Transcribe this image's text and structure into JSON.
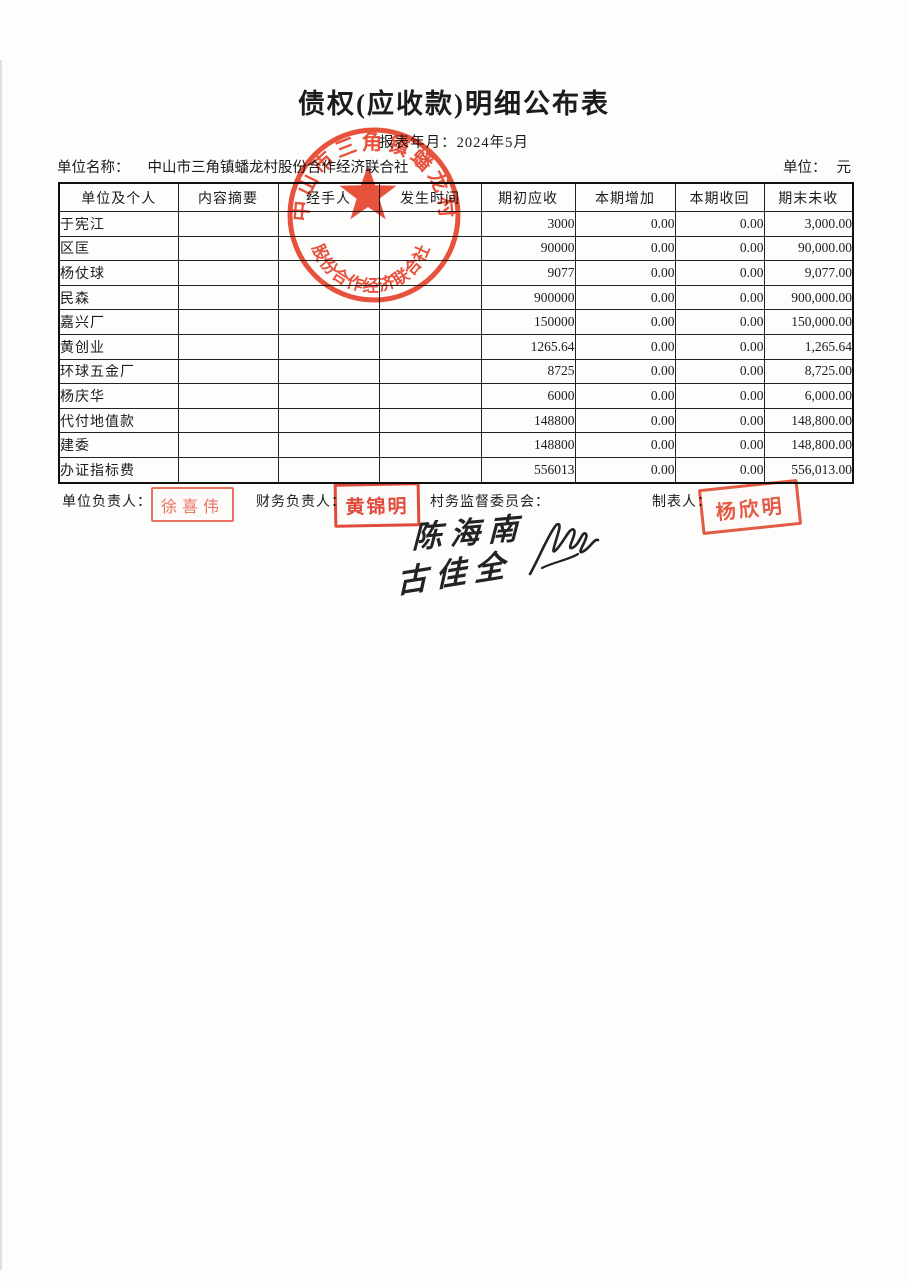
{
  "page": {
    "title": "债权(应收款)明细公布表",
    "report_period_label": "报表年月：",
    "report_period_value": "2024年5月",
    "unit_name_label": "单位名称：",
    "unit_name_value": "中山市三角镇蟠龙村股份合作经济联合社",
    "unit_label": "单位：",
    "unit_value": "元"
  },
  "table": {
    "columns": [
      "单位及个人",
      "内容摘要",
      "经手人",
      "发生时间",
      "期初应收",
      "本期增加",
      "本期收回",
      "期末未收"
    ],
    "rows": [
      [
        "于宪江",
        "",
        "",
        "",
        "3000",
        "0.00",
        "0.00",
        "3,000.00"
      ],
      [
        "区匡",
        "",
        "",
        "",
        "90000",
        "0.00",
        "0.00",
        "90,000.00"
      ],
      [
        "杨仗球",
        "",
        "",
        "",
        "9077",
        "0.00",
        "0.00",
        "9,077.00"
      ],
      [
        "民森",
        "",
        "",
        "",
        "900000",
        "0.00",
        "0.00",
        "900,000.00"
      ],
      [
        "嘉兴厂",
        "",
        "",
        "",
        "150000",
        "0.00",
        "0.00",
        "150,000.00"
      ],
      [
        "黄创业",
        "",
        "",
        "",
        "1265.64",
        "0.00",
        "0.00",
        "1,265.64"
      ],
      [
        "环球五金厂",
        "",
        "",
        "",
        "8725",
        "0.00",
        "0.00",
        "8,725.00"
      ],
      [
        "杨庆华",
        "",
        "",
        "",
        "6000",
        "0.00",
        "0.00",
        "6,000.00"
      ],
      [
        "代付地值款",
        "",
        "",
        "",
        "148800",
        "0.00",
        "0.00",
        "148,800.00"
      ],
      [
        "建委",
        "",
        "",
        "",
        "148800",
        "0.00",
        "0.00",
        "148,800.00"
      ],
      [
        "办证指标费",
        "",
        "",
        "",
        "556013",
        "0.00",
        "0.00",
        "556,013.00"
      ]
    ]
  },
  "seal": {
    "ring_text_top": "中山市三角镇蟠龙村",
    "ring_text_bottom": "股份合作经济联合社",
    "color": "#e8432c"
  },
  "footer": {
    "unit_head_label": "单位负责人：",
    "unit_head_stamp": "徐喜伟",
    "finance_head_label": "财务负责人：",
    "finance_head_stamp": "黄锦明",
    "committee_label": "村务监督委员会：",
    "preparer_label": "制表人：",
    "preparer_stamp": "杨欣明",
    "handwritten_signatures": [
      "陈海南",
      "古佳全"
    ]
  },
  "colors": {
    "seal_red": "#e8432c",
    "stamp_red_strong": "#dd3220",
    "ink_black": "#232323"
  }
}
